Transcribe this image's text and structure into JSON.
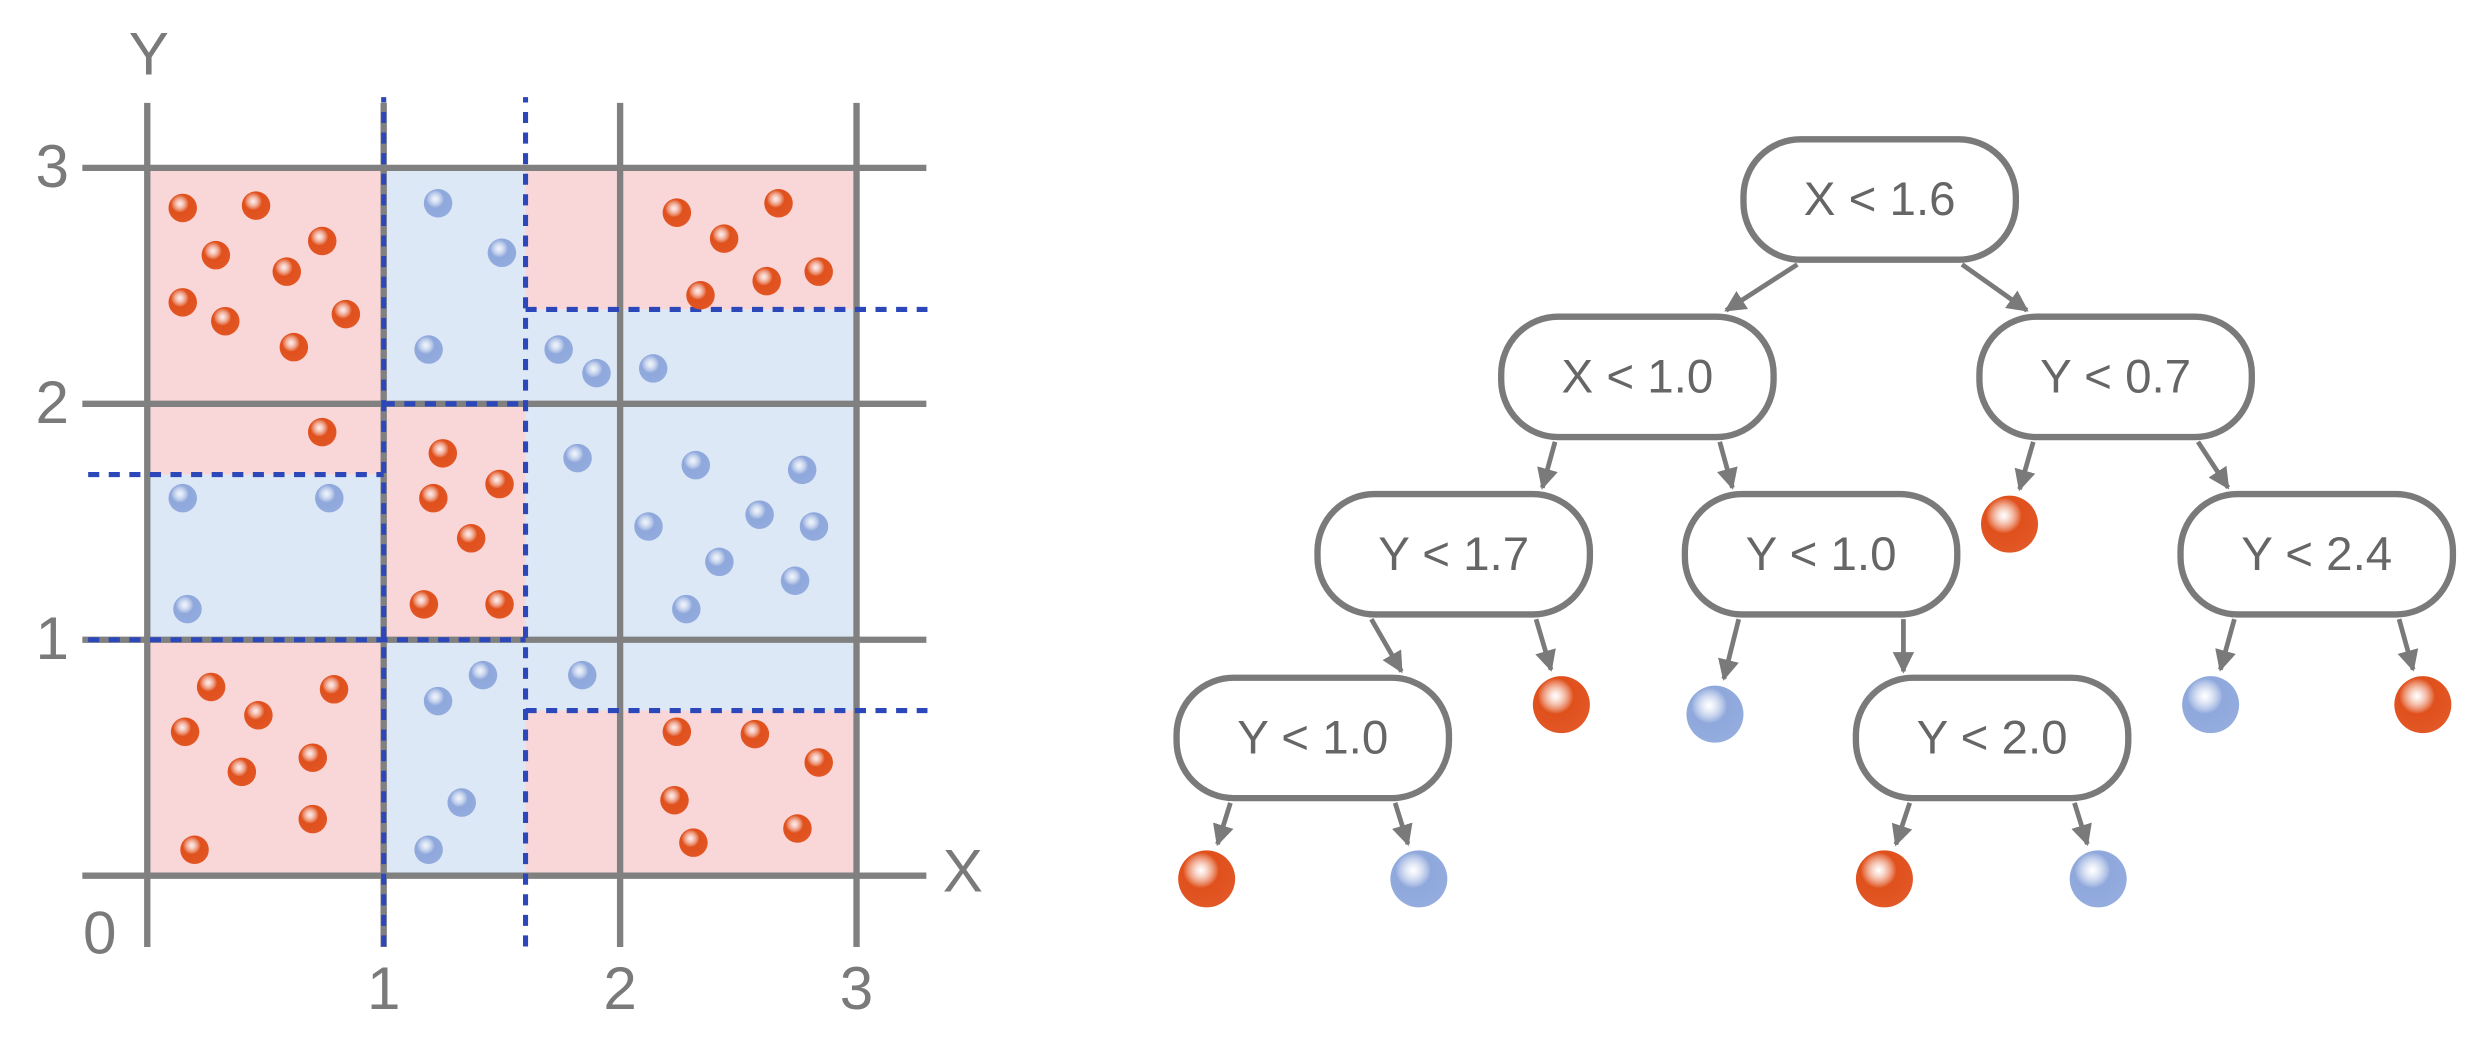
{
  "plot": {
    "x_label": "X",
    "y_label": "Y",
    "origin": 0,
    "xticks": [
      1,
      2,
      3
    ],
    "yticks": [
      1,
      2,
      3
    ],
    "regions": [
      {
        "x": [
          0,
          1
        ],
        "y": [
          2,
          3
        ],
        "color": "#f9d6d8"
      },
      {
        "x": [
          1,
          1.6
        ],
        "y": [
          2,
          3
        ],
        "color": "#dde8f6"
      },
      {
        "x": [
          1.6,
          3
        ],
        "y": [
          2.4,
          3
        ],
        "color": "#f9d6d8"
      },
      {
        "x": [
          1.6,
          3
        ],
        "y": [
          0.7,
          2.4
        ],
        "color": "#dde8f6"
      },
      {
        "x": [
          1.6,
          3
        ],
        "y": [
          0,
          0.7
        ],
        "color": "#f9d6d8"
      },
      {
        "x": [
          0,
          1
        ],
        "y": [
          1,
          1.7
        ],
        "color": "#dde8f6"
      },
      {
        "x": [
          0,
          1
        ],
        "y": [
          1.7,
          2
        ],
        "color": "#f9d6d8"
      },
      {
        "x": [
          0,
          1
        ],
        "y": [
          0,
          1
        ],
        "color": "#f9d6d8"
      },
      {
        "x": [
          1,
          1.6
        ],
        "y": [
          1,
          2
        ],
        "color": "#f9d6d8"
      },
      {
        "x": [
          1,
          1.6
        ],
        "y": [
          0,
          1
        ],
        "color": "#dde8f6"
      }
    ],
    "splits": [
      {
        "x": [
          1,
          1
        ],
        "y": [
          -0.3,
          3.3
        ]
      },
      {
        "x": [
          1.6,
          1.6
        ],
        "y": [
          -0.3,
          3.3
        ]
      },
      {
        "x": [
          -0.25,
          1.6
        ],
        "y": [
          1,
          1
        ]
      },
      {
        "x": [
          -0.25,
          1
        ],
        "y": [
          1.7,
          1.7
        ]
      },
      {
        "x": [
          1,
          1.6
        ],
        "y": [
          2,
          2
        ]
      },
      {
        "x": [
          1.6,
          3.3
        ],
        "y": [
          2.4,
          2.4
        ]
      },
      {
        "x": [
          1.6,
          3.3
        ],
        "y": [
          0.7,
          0.7
        ]
      }
    ],
    "split_color": "#2b47b9",
    "series": [
      {
        "color": "#e0501c",
        "x": [
          0.15,
          0.46,
          0.29,
          0.74,
          0.59,
          0.15,
          0.33,
          0.62,
          0.84,
          0.74,
          1.25,
          1.21,
          1.49,
          1.37,
          1.17,
          1.49,
          2.24,
          2.44,
          2.67,
          2.34,
          2.62,
          2.84,
          0.27,
          0.79,
          0.16,
          0.47,
          0.7,
          0.4,
          0.7,
          0.2,
          2.24,
          2.57,
          2.84,
          2.23,
          2.31,
          2.75
        ],
        "y": [
          2.83,
          2.84,
          2.63,
          2.69,
          2.56,
          2.43,
          2.35,
          2.24,
          2.38,
          1.88,
          1.79,
          1.6,
          1.66,
          1.43,
          1.15,
          1.15,
          2.81,
          2.7,
          2.85,
          2.46,
          2.52,
          2.56,
          0.8,
          0.79,
          0.61,
          0.68,
          0.5,
          0.44,
          0.24,
          0.11,
          0.61,
          0.6,
          0.48,
          0.32,
          0.14,
          0.2
        ]
      },
      {
        "color": "#8fa8dc",
        "x": [
          1.23,
          1.5,
          1.19,
          1.74,
          1.9,
          2.14,
          0.15,
          0.77,
          0.17,
          1.82,
          2.32,
          2.77,
          2.12,
          2.42,
          2.59,
          2.82,
          2.28,
          2.74,
          1.42,
          1.23,
          1.84,
          1.33,
          1.19
        ],
        "y": [
          2.85,
          2.64,
          2.23,
          2.23,
          2.13,
          2.15,
          1.6,
          1.6,
          1.13,
          1.77,
          1.74,
          1.72,
          1.48,
          1.33,
          1.53,
          1.48,
          1.13,
          1.25,
          0.85,
          0.74,
          0.85,
          0.31,
          0.11
        ]
      }
    ]
  },
  "tree": {
    "nodes": [
      {
        "label": "X < 1.6"
      },
      {
        "label": "X < 1.0"
      },
      {
        "label": "Y < 0.7"
      },
      {
        "label": "Y < 1.7"
      },
      {
        "label": "Y < 1.0"
      },
      {
        "color": "#e0501c"
      },
      {
        "label": "Y < 2.4"
      },
      {
        "label": "Y < 1.0"
      },
      {
        "color": "#e0501c"
      },
      {
        "color": "#8fa8dc"
      },
      {
        "label": "Y < 2.0"
      },
      {
        "color": "#8fa8dc"
      },
      {
        "color": "#e0501c"
      },
      {
        "color": "#e0501c"
      },
      {
        "color": "#8fa8dc"
      },
      {
        "color": "#e0501c"
      },
      {
        "color": "#8fa8dc"
      }
    ]
  }
}
